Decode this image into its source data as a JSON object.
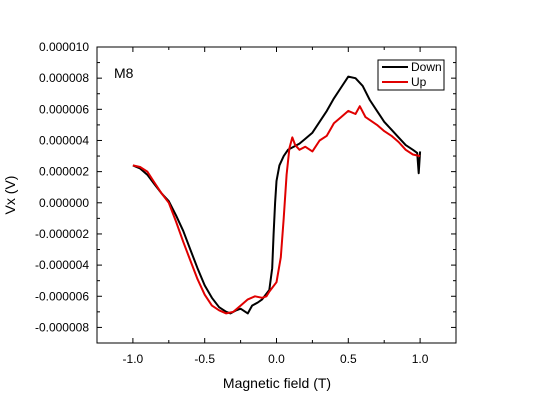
{
  "chart_data": {
    "type": "line",
    "title": "",
    "annotation": "M8",
    "xlabel": "Magnetic field (T)",
    "ylabel": "Vx (V)",
    "xlim": [
      -1.25,
      1.25
    ],
    "ylim": [
      -9e-06,
      1e-05
    ],
    "x_ticks": [
      -1.0,
      -0.5,
      0.0,
      0.5,
      1.0
    ],
    "x_tick_labels": [
      "-1.0",
      "-0.5",
      "0.0",
      "0.5",
      "1.0"
    ],
    "y_ticks": [
      1e-05,
      8e-06,
      6e-06,
      4e-06,
      2e-06,
      0.0,
      -2e-06,
      -4e-06,
      -6e-06,
      -8e-06
    ],
    "y_tick_labels": [
      "0.000010",
      "0.000008",
      "0.000006",
      "0.000004",
      "0.000002",
      "0.000000",
      "-0.000002",
      "-0.000004",
      "-0.000006",
      "-0.000008"
    ],
    "grid": false,
    "legend_position": "top-right",
    "series": [
      {
        "name": "Down",
        "color": "#000000",
        "points": [
          [
            -1.0,
            2.4e-06
          ],
          [
            -0.95,
            2.2e-06
          ],
          [
            -0.9,
            1.8e-06
          ],
          [
            -0.85,
            1.2e-06
          ],
          [
            -0.8,
            6e-07
          ],
          [
            -0.75,
            1e-07
          ],
          [
            -0.7,
            -8e-07
          ],
          [
            -0.65,
            -1.8e-06
          ],
          [
            -0.6,
            -3e-06
          ],
          [
            -0.55,
            -4.2e-06
          ],
          [
            -0.5,
            -5.3e-06
          ],
          [
            -0.45,
            -6.1e-06
          ],
          [
            -0.4,
            -6.7e-06
          ],
          [
            -0.35,
            -7e-06
          ],
          [
            -0.32,
            -7.1e-06
          ],
          [
            -0.28,
            -6.9e-06
          ],
          [
            -0.25,
            -6.8e-06
          ],
          [
            -0.2,
            -7.1e-06
          ],
          [
            -0.17,
            -6.6e-06
          ],
          [
            -0.13,
            -6.4e-06
          ],
          [
            -0.1,
            -6.2e-06
          ],
          [
            -0.05,
            -5.6e-06
          ],
          [
            -0.03,
            -4.2e-06
          ],
          [
            -0.02,
            -2e-06
          ],
          [
            -0.01,
            0.0
          ],
          [
            0.0,
            1.4e-06
          ],
          [
            0.02,
            2.4e-06
          ],
          [
            0.05,
            3e-06
          ],
          [
            0.08,
            3.4e-06
          ],
          [
            0.12,
            3.6e-06
          ],
          [
            0.16,
            3.8e-06
          ],
          [
            0.2,
            4.1e-06
          ],
          [
            0.25,
            4.5e-06
          ],
          [
            0.3,
            5.2e-06
          ],
          [
            0.35,
            5.9e-06
          ],
          [
            0.4,
            6.7e-06
          ],
          [
            0.45,
            7.4e-06
          ],
          [
            0.5,
            8.1e-06
          ],
          [
            0.55,
            8e-06
          ],
          [
            0.6,
            7.5e-06
          ],
          [
            0.65,
            6.6e-06
          ],
          [
            0.7,
            5.9e-06
          ],
          [
            0.75,
            5.2e-06
          ],
          [
            0.8,
            4.7e-06
          ],
          [
            0.85,
            4.2e-06
          ],
          [
            0.9,
            3.7e-06
          ],
          [
            0.95,
            3.4e-06
          ],
          [
            0.98,
            3.2e-06
          ],
          [
            0.99,
            1.9e-06
          ],
          [
            1.0,
            3.3e-06
          ]
        ]
      },
      {
        "name": "Up",
        "color": "#e00000",
        "points": [
          [
            -1.0,
            2.4e-06
          ],
          [
            -0.95,
            2.3e-06
          ],
          [
            -0.9,
            2e-06
          ],
          [
            -0.85,
            1.3e-06
          ],
          [
            -0.8,
            6e-07
          ],
          [
            -0.75,
            0.0
          ],
          [
            -0.7,
            -1.2e-06
          ],
          [
            -0.65,
            -2.5e-06
          ],
          [
            -0.6,
            -3.7e-06
          ],
          [
            -0.55,
            -4.9e-06
          ],
          [
            -0.5,
            -5.9e-06
          ],
          [
            -0.45,
            -6.6e-06
          ],
          [
            -0.4,
            -6.9e-06
          ],
          [
            -0.35,
            -7.1e-06
          ],
          [
            -0.3,
            -7e-06
          ],
          [
            -0.25,
            -6.6e-06
          ],
          [
            -0.2,
            -6.2e-06
          ],
          [
            -0.15,
            -6e-06
          ],
          [
            -0.1,
            -6.1e-06
          ],
          [
            -0.07,
            -6e-06
          ],
          [
            -0.05,
            -5.7e-06
          ],
          [
            0.0,
            -5.1e-06
          ],
          [
            0.03,
            -3.5e-06
          ],
          [
            0.05,
            -1e-06
          ],
          [
            0.07,
            1.8e-06
          ],
          [
            0.09,
            3.5e-06
          ],
          [
            0.11,
            4.2e-06
          ],
          [
            0.13,
            3.7e-06
          ],
          [
            0.16,
            3.4e-06
          ],
          [
            0.2,
            3.6e-06
          ],
          [
            0.25,
            3.3e-06
          ],
          [
            0.3,
            4e-06
          ],
          [
            0.35,
            4.3e-06
          ],
          [
            0.4,
            5.1e-06
          ],
          [
            0.45,
            5.5e-06
          ],
          [
            0.5,
            5.9e-06
          ],
          [
            0.55,
            5.7e-06
          ],
          [
            0.58,
            6.2e-06
          ],
          [
            0.62,
            5.5e-06
          ],
          [
            0.7,
            5e-06
          ],
          [
            0.75,
            4.6e-06
          ],
          [
            0.8,
            4.3e-06
          ],
          [
            0.85,
            3.9e-06
          ],
          [
            0.9,
            3.4e-06
          ],
          [
            0.95,
            3.1e-06
          ],
          [
            1.0,
            3e-06
          ]
        ]
      }
    ]
  }
}
